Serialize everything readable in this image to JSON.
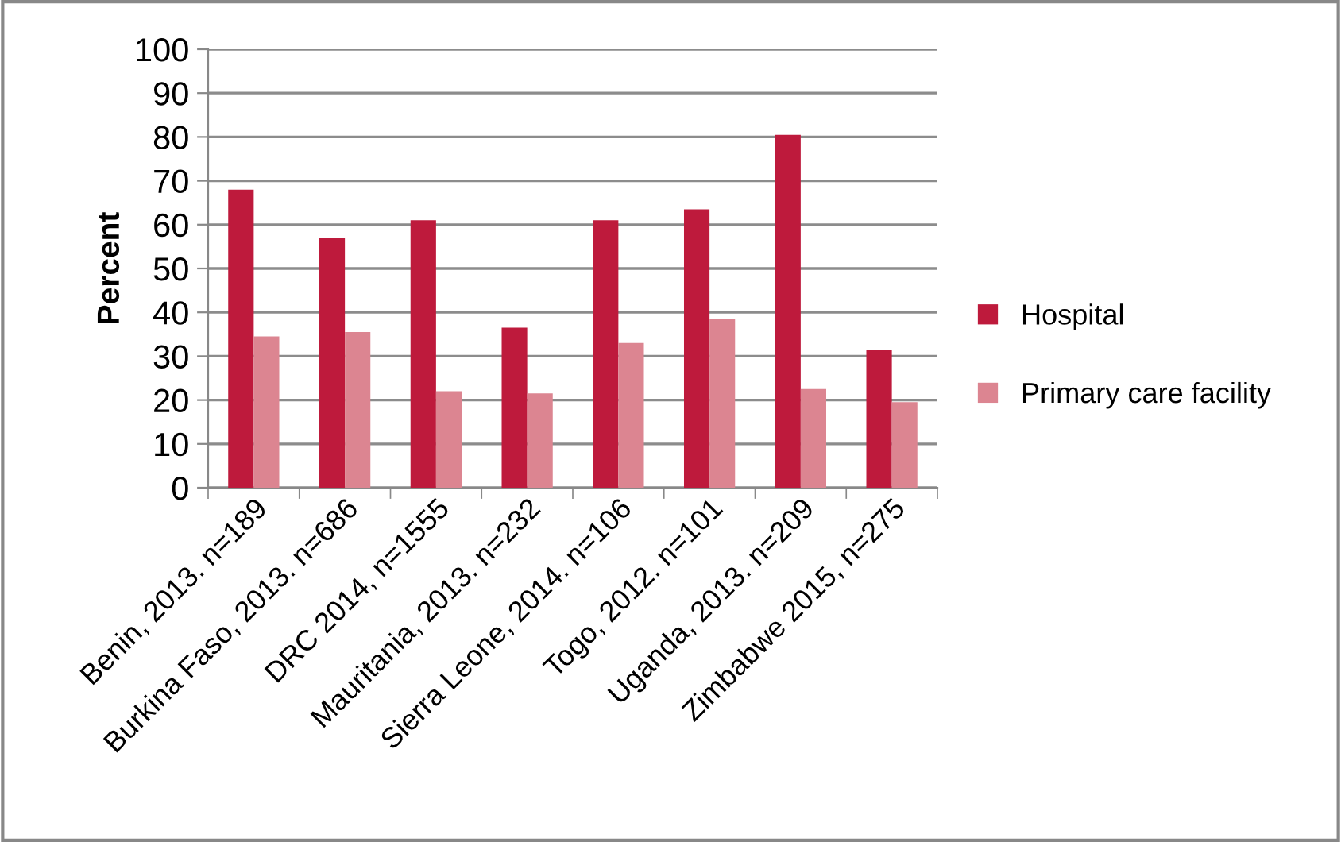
{
  "chart_data": {
    "type": "bar",
    "ylabel": "Percent",
    "categories": [
      "Benin, 2013. n=189",
      "Burkina Faso, 2013. n=686",
      "DRC 2014, n=1555",
      "Mauritania, 2013. n=232",
      "Sierra Leone, 2014. n=106",
      "Togo, 2012. n=101",
      "Uganda, 2013. n=209",
      "Zimbabwe 2015, n=275"
    ],
    "series": [
      {
        "name": "Hospital",
        "color": "#be1a3c",
        "values": [
          68,
          57,
          61,
          36.5,
          61,
          63.5,
          80.5,
          31.5
        ]
      },
      {
        "name": "Primary care facility",
        "color": "#dc8591",
        "values": [
          34.5,
          35.5,
          22,
          21.5,
          33,
          38.5,
          22.5,
          19.5
        ]
      }
    ],
    "ylim": [
      0,
      100
    ],
    "yticks": [
      0,
      10,
      20,
      30,
      40,
      50,
      60,
      70,
      80,
      90,
      100
    ],
    "grid": "y",
    "legend": "right"
  }
}
